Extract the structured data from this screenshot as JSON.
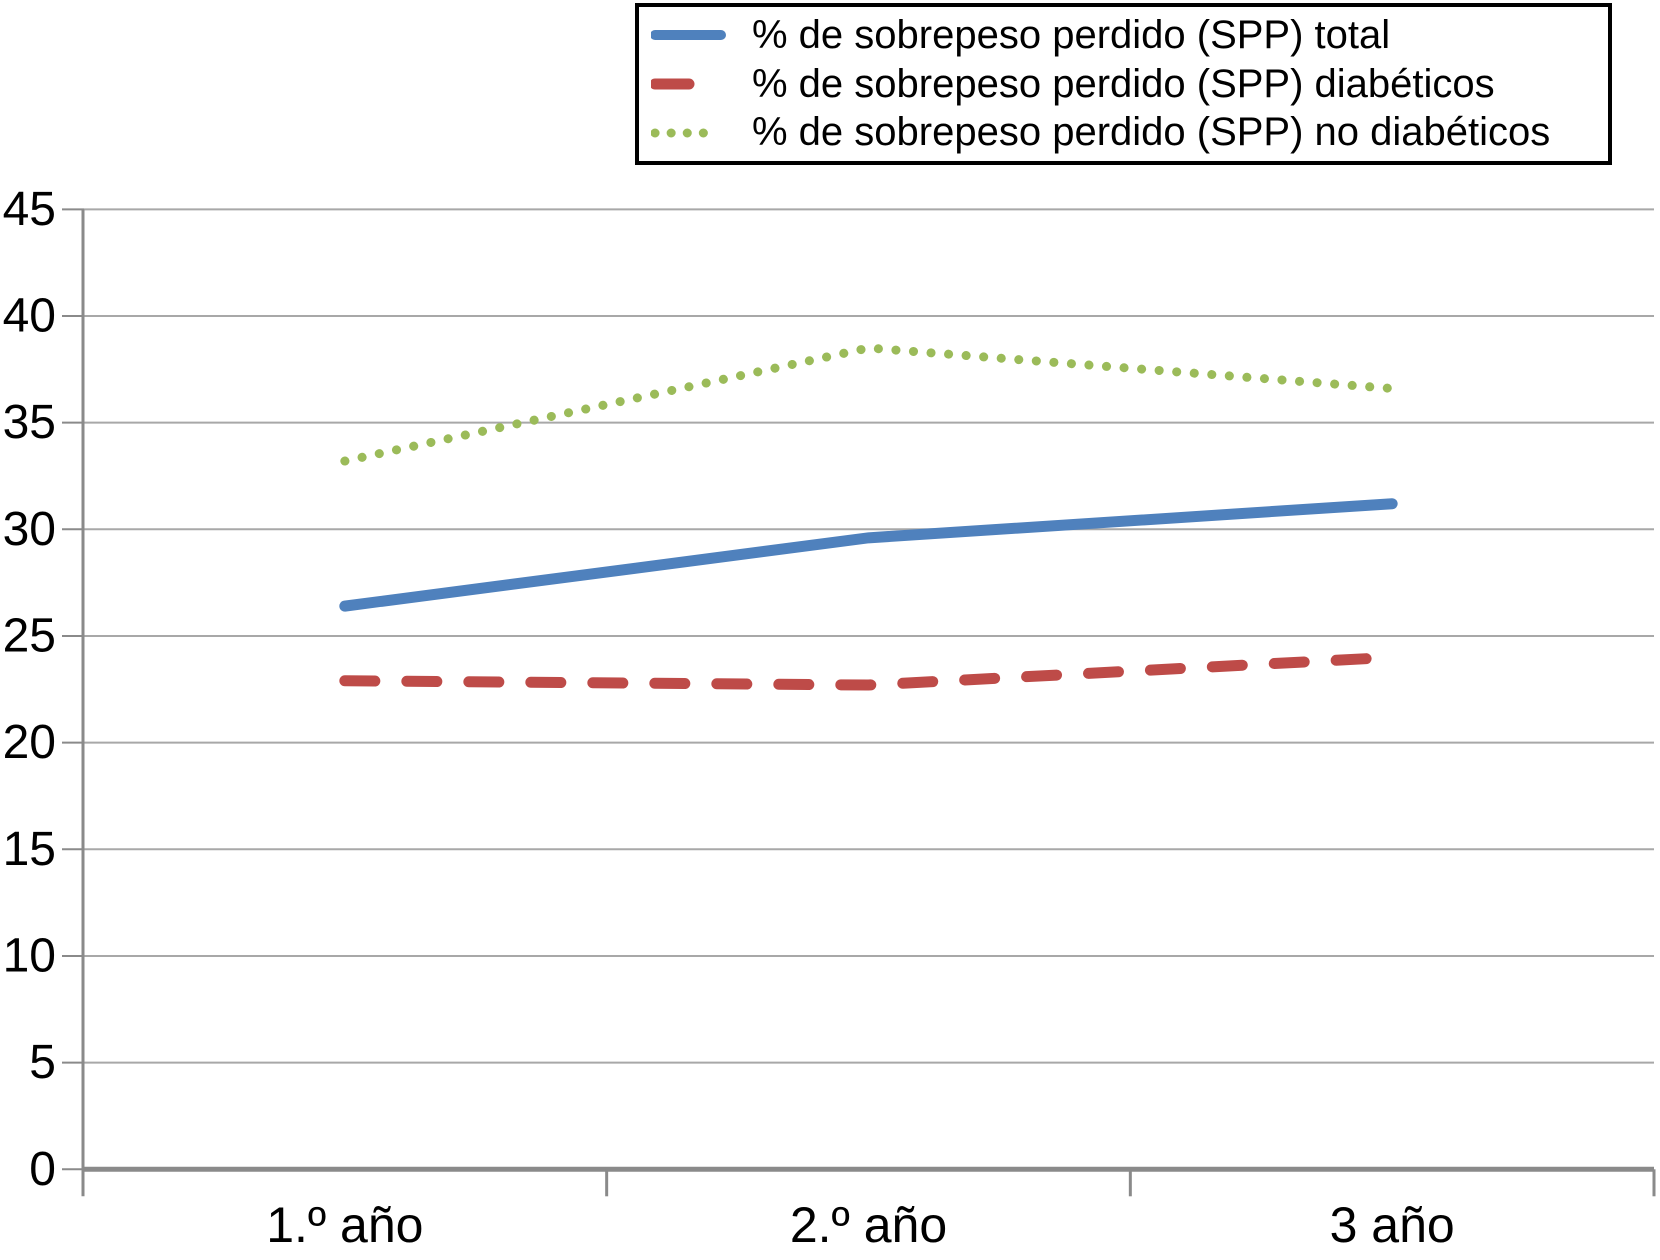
{
  "chart_data": {
    "type": "line",
    "categories": [
      "1.º año",
      "2.º año",
      "3 año"
    ],
    "series": [
      {
        "name": "% de sobrepeso perdido (SPP) total",
        "values": [
          26.4,
          29.6,
          31.2
        ],
        "color": "#4F81BD",
        "style": "solid"
      },
      {
        "name": "% de sobrepeso perdido (SPP) diabéticos",
        "values": [
          22.9,
          22.7,
          24.0
        ],
        "color": "#BE4B48",
        "style": "dashed"
      },
      {
        "name": "% de sobrepeso perdido (SPP) no diabéticos",
        "values": [
          33.2,
          38.5,
          36.6
        ],
        "color": "#9BBB59",
        "style": "dotted"
      }
    ],
    "xlabel": "",
    "ylabel": "",
    "title": "",
    "ylim": [
      0,
      45
    ],
    "ytick_step": 5,
    "ytick_labels": [
      "0",
      "5",
      "10",
      "15",
      "20",
      "25",
      "30",
      "35",
      "40",
      "45"
    ],
    "grid": true,
    "legend_position": "top-right",
    "colors": {
      "axis": "#8A8A8A",
      "grid": "#A8A8A8",
      "tick_label": "#000000"
    }
  }
}
